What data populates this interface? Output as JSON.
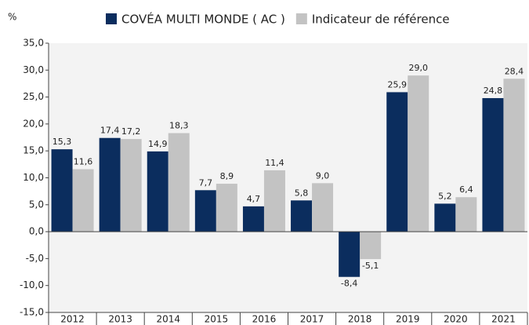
{
  "chart_data": {
    "type": "bar",
    "y_label": "%",
    "categories": [
      "2012",
      "2013",
      "2014",
      "2015",
      "2016",
      "2017",
      "2018",
      "2019",
      "2020",
      "2021"
    ],
    "series": [
      {
        "name": "COVÉA MULTI MONDE ( AC )",
        "color": "#0b2d5e",
        "values": [
          15.3,
          17.4,
          14.9,
          7.7,
          4.7,
          5.8,
          -8.4,
          25.9,
          5.2,
          24.8
        ],
        "value_labels": [
          "15,3",
          "17,4",
          "14,9",
          "7,7",
          "4,7",
          "5,8",
          "-8,4",
          "25,9",
          "5,2",
          "24,8"
        ]
      },
      {
        "name": "Indicateur de référence",
        "color": "#c3c3c3",
        "values": [
          11.6,
          17.2,
          18.3,
          8.9,
          11.4,
          9.0,
          -5.1,
          29.0,
          6.4,
          28.4
        ],
        "value_labels": [
          "11,6",
          "17,2",
          "18,3",
          "8,9",
          "11,4",
          "9,0",
          "-5,1",
          "29,0",
          "6,4",
          "28,4"
        ]
      }
    ],
    "ylim": [
      -15,
      35
    ],
    "yticks": [
      {
        "value": -15,
        "label": "-15,0"
      },
      {
        "value": -10,
        "label": "-10,0"
      },
      {
        "value": -5,
        "label": "-5,0"
      },
      {
        "value": 0,
        "label": "0,0"
      },
      {
        "value": 5,
        "label": "5,0"
      },
      {
        "value": 10,
        "label": "10,0"
      },
      {
        "value": 15,
        "label": "15,0"
      },
      {
        "value": 20,
        "label": "20,0"
      },
      {
        "value": 25,
        "label": "25,0"
      },
      {
        "value": 30,
        "label": "30,0"
      },
      {
        "value": 35,
        "label": "35,0"
      }
    ],
    "grid": false,
    "legend": "top"
  }
}
